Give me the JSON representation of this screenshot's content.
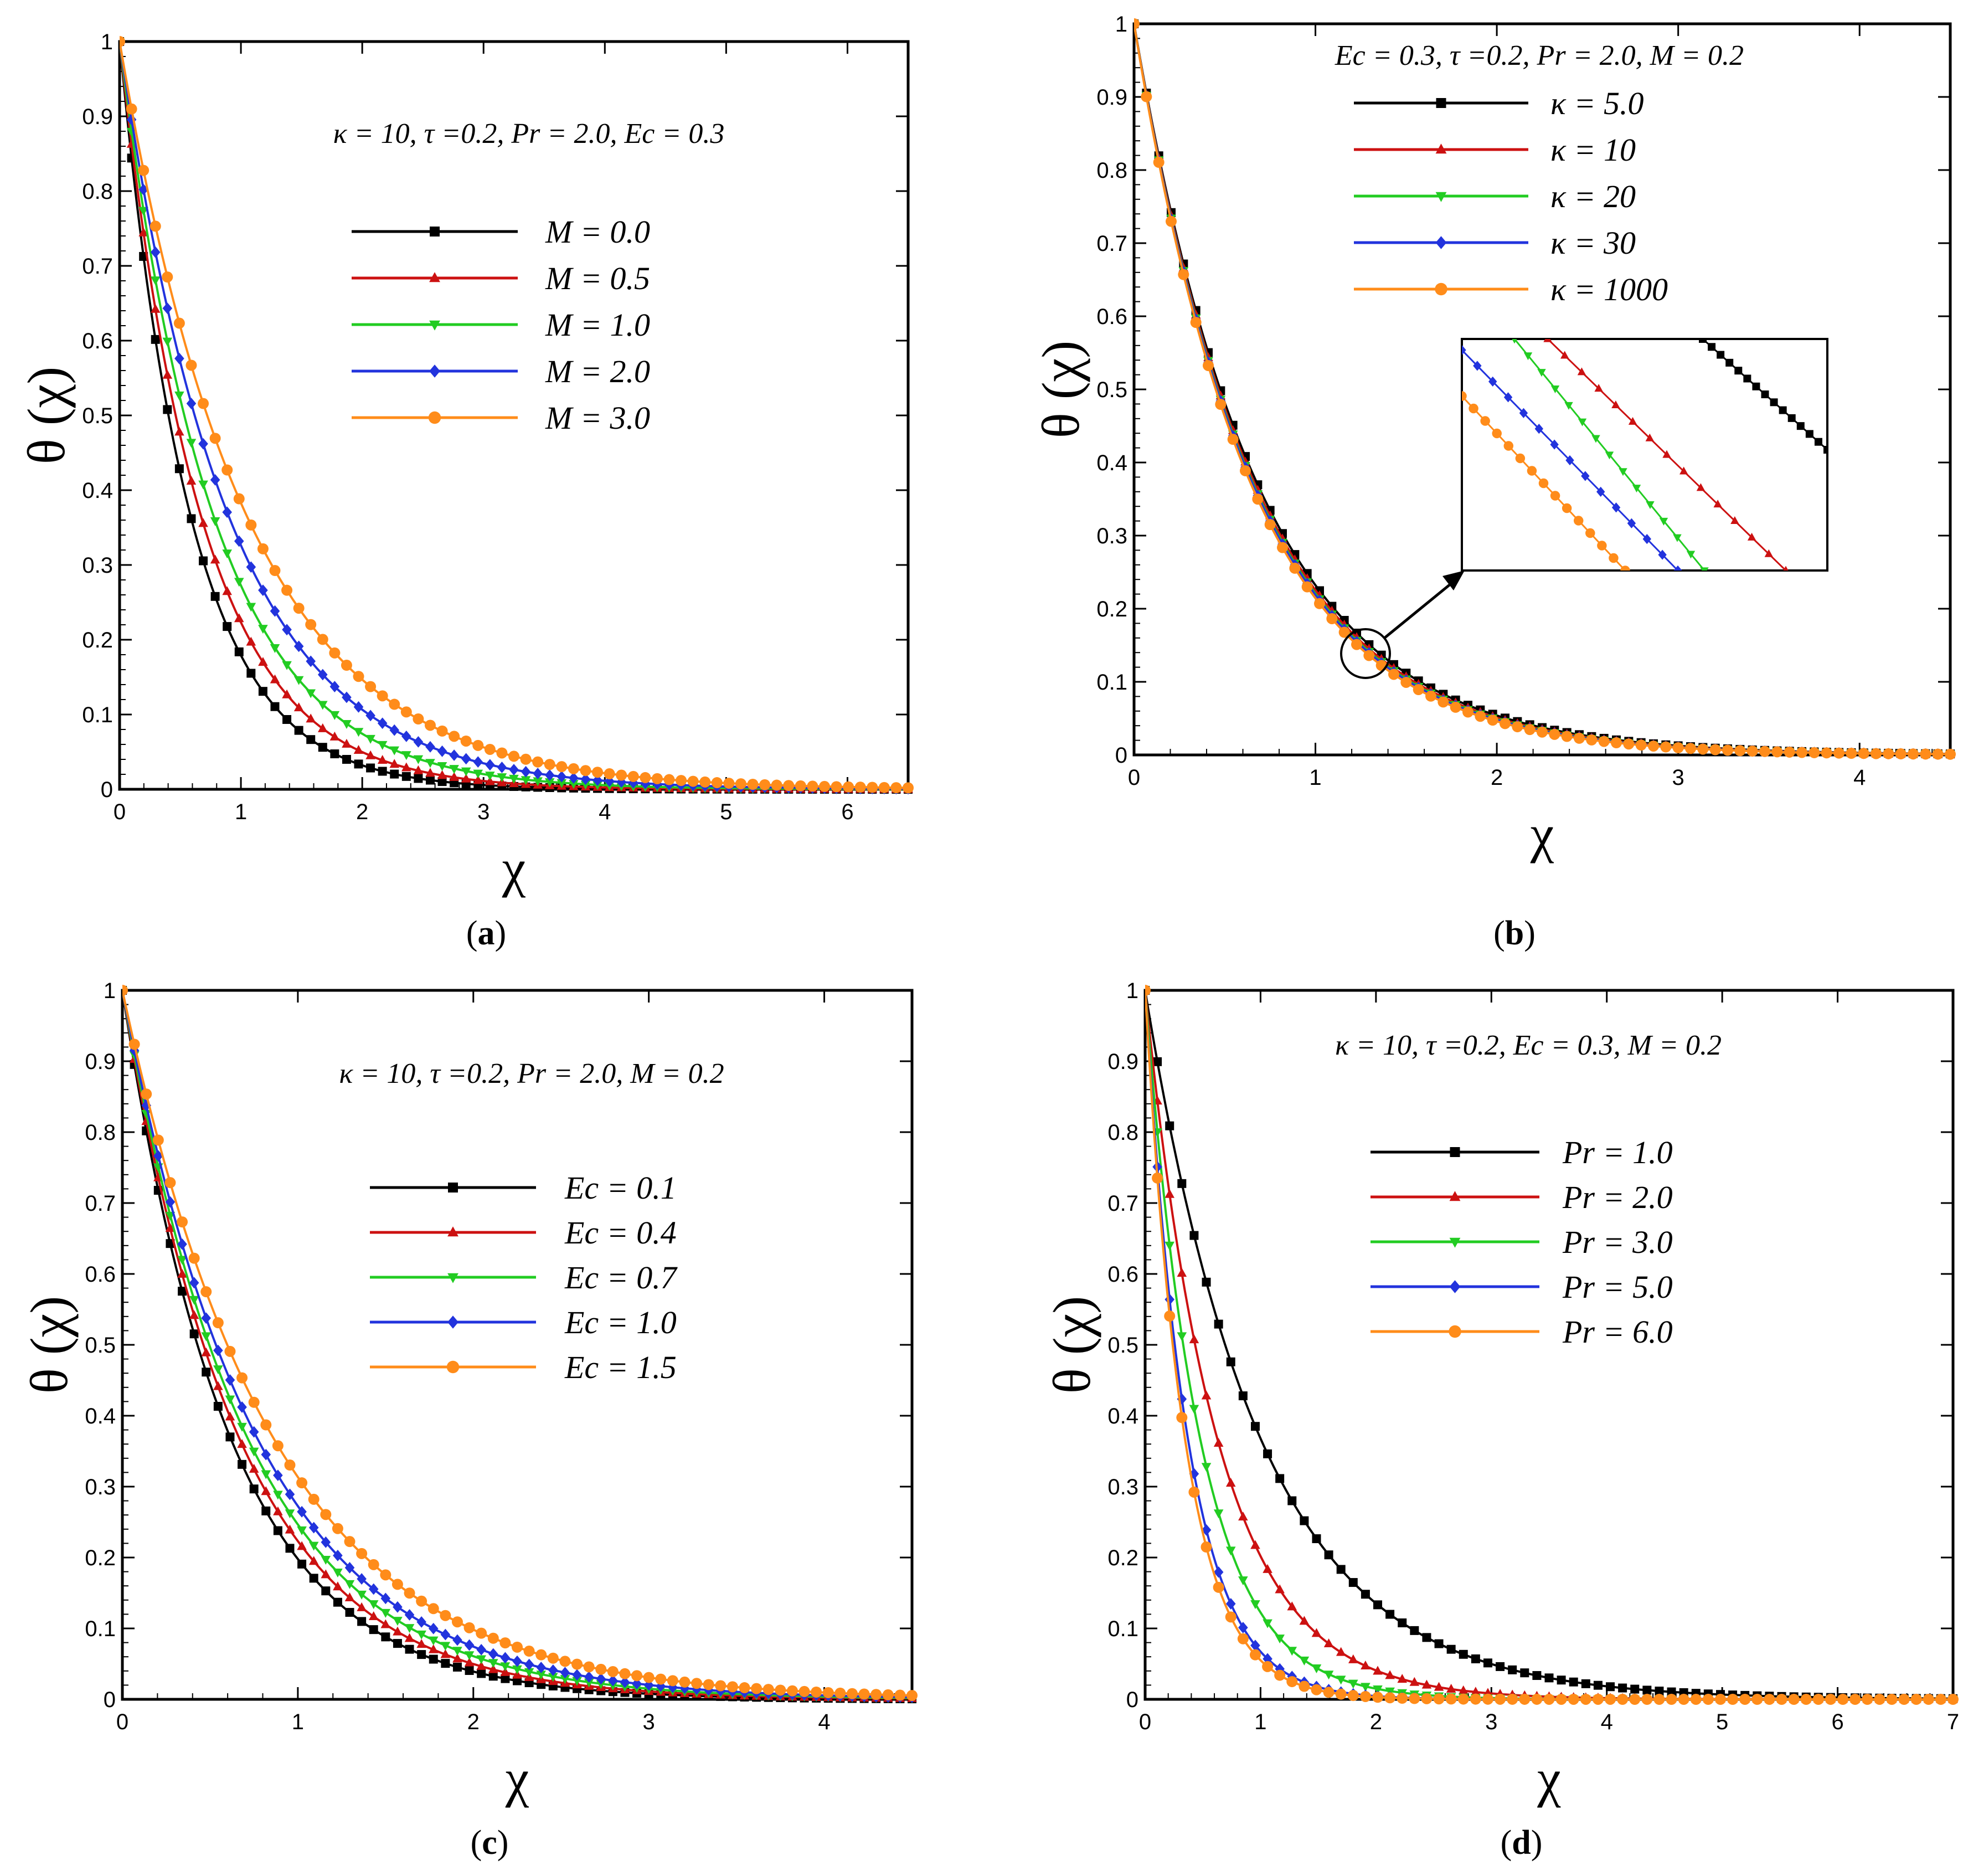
{
  "chart_data": [
    {
      "id": "a",
      "type": "line",
      "caption_open": "(",
      "caption_letter": "a",
      "caption_close": ")",
      "xlabel": "χ",
      "ylabel": "θ (χ)",
      "xlim": [
        0,
        6.5
      ],
      "ylim": [
        0,
        1
      ],
      "xticks": [
        0,
        1,
        2,
        3,
        4,
        5,
        6
      ],
      "yticks": [
        0,
        0.1,
        0.2,
        0.3,
        0.4,
        0.5,
        0.6,
        0.7,
        0.8,
        0.9,
        1
      ],
      "annotation": "κ = 10, τ =0.2, Pr = 2.0, Ec = 0.3",
      "series": [
        {
          "name": "M = 0.0",
          "color": "#000000",
          "marker": "square",
          "decay": 1.72
        },
        {
          "name": "M = 0.5",
          "color": "#cc1111",
          "marker": "triangle-up",
          "decay": 1.5
        },
        {
          "name": "M = 1.0",
          "color": "#22cc22",
          "marker": "triangle-down",
          "decay": 1.3
        },
        {
          "name": "M = 2.0",
          "color": "#2233dd",
          "marker": "diamond",
          "decay": 1.12
        },
        {
          "name": "M = 3.0",
          "color": "#ff8c1a",
          "marker": "circle",
          "decay": 0.96
        }
      ]
    },
    {
      "id": "b",
      "type": "line",
      "caption_open": "(",
      "caption_letter": "b",
      "caption_close": ")",
      "xlabel": "χ",
      "ylabel": "θ (χ)",
      "xlim": [
        0,
        4.5
      ],
      "ylim": [
        0,
        1
      ],
      "xticks": [
        0,
        1,
        2,
        3,
        4
      ],
      "yticks": [
        0,
        0.1,
        0.2,
        0.3,
        0.4,
        0.5,
        0.6,
        0.7,
        0.8,
        0.9,
        1
      ],
      "annotation": "Ec = 0.3, τ =0.2, Pr = 2.0, M = 0.2",
      "inset": true,
      "series": [
        {
          "name": "κ = 5.0",
          "color": "#000000",
          "marker": "square",
          "decay": 1.46
        },
        {
          "name": "κ = 10",
          "color": "#cc1111",
          "marker": "triangle-up",
          "decay": 1.49
        },
        {
          "name": "κ = 20",
          "color": "#22cc22",
          "marker": "triangle-down",
          "decay": 1.51
        },
        {
          "name": "κ = 30",
          "color": "#2233dd",
          "marker": "diamond",
          "decay": 1.52
        },
        {
          "name": "κ = 1000",
          "color": "#ff8c1a",
          "marker": "circle",
          "decay": 1.54
        }
      ]
    },
    {
      "id": "c",
      "type": "line",
      "caption_open": "(",
      "caption_letter": "c",
      "caption_close": ")",
      "xlabel": "χ",
      "ylabel": "θ (χ)",
      "xlim": [
        0,
        4.5
      ],
      "ylim": [
        0,
        1
      ],
      "xticks": [
        0,
        1,
        2,
        3,
        4
      ],
      "yticks": [
        0,
        0.1,
        0.2,
        0.3,
        0.4,
        0.5,
        0.6,
        0.7,
        0.8,
        0.9,
        1
      ],
      "annotation": "κ = 10, τ =0.2, Pr = 2.0, M = 0.2",
      "series": [
        {
          "name": "Ec = 0.1",
          "color": "#000000",
          "marker": "square",
          "decay": 1.62
        },
        {
          "name": "Ec = 0.4",
          "color": "#cc1111",
          "marker": "triangle-up",
          "decay": 1.5
        },
        {
          "name": "Ec = 0.7",
          "color": "#22cc22",
          "marker": "triangle-down",
          "decay": 1.4
        },
        {
          "name": "Ec = 1.0",
          "color": "#2233dd",
          "marker": "diamond",
          "decay": 1.3
        },
        {
          "name": "Ec = 1.5",
          "color": "#ff8c1a",
          "marker": "circle",
          "decay": 1.16
        }
      ]
    },
    {
      "id": "d",
      "type": "line",
      "caption_open": "(",
      "caption_letter": "d",
      "caption_close": ")",
      "xlabel": "χ",
      "ylabel": "θ (χ)",
      "xlim": [
        0,
        7
      ],
      "ylim": [
        0,
        1
      ],
      "xticks": [
        0,
        1,
        2,
        3,
        4,
        5,
        6,
        7
      ],
      "yticks": [
        0,
        0.1,
        0.2,
        0.3,
        0.4,
        0.5,
        0.6,
        0.7,
        0.8,
        0.9,
        1
      ],
      "annotation": "κ = 10, τ =0.2, Ec = 0.3, M = 0.2",
      "series": [
        {
          "name": "Pr = 1.0",
          "color": "#000000",
          "marker": "square",
          "decay": 1.0
        },
        {
          "name": "Pr = 2.0",
          "color": "#cc1111",
          "marker": "triangle-up",
          "decay": 1.6
        },
        {
          "name": "Pr = 3.0",
          "color": "#22cc22",
          "marker": "triangle-down",
          "decay": 2.1
        },
        {
          "name": "Pr = 5.0",
          "color": "#2233dd",
          "marker": "diamond",
          "decay": 2.7
        },
        {
          "name": "Pr = 6.0",
          "color": "#ff8c1a",
          "marker": "circle",
          "decay": 2.9
        }
      ]
    }
  ]
}
